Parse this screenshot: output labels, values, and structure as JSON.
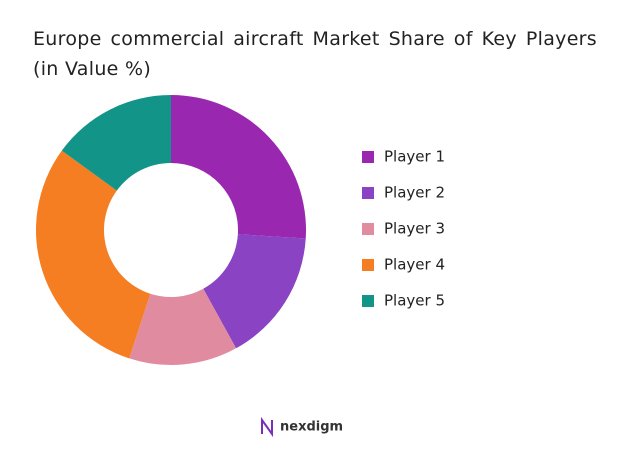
{
  "chart_data": {
    "type": "donut",
    "title": "Europe commercial aircraft Market Share of Key Players (in Value %)",
    "categories": [
      "Player 1",
      "Player 2",
      "Player 3",
      "Player 4",
      "Player 5"
    ],
    "values": [
      26,
      16,
      13,
      30,
      15
    ],
    "colors": [
      "#9a27b0",
      "#8a43c2",
      "#e08ba0",
      "#f57e22",
      "#139488"
    ],
    "legend": "right"
  },
  "footer": {
    "logo": "nexdigm"
  }
}
